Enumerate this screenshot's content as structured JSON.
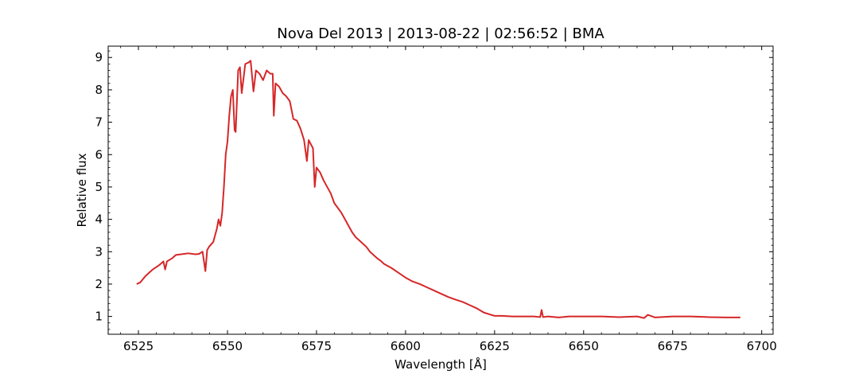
{
  "chart_data": {
    "type": "line",
    "title": "Nova Del 2013 | 2013-08-22 | 02:56:52 | BMA",
    "xlabel": "Wavelength [Å]",
    "ylabel": "Relative flux",
    "xlim": [
      6516.5,
      6703.2
    ],
    "ylim": [
      0.45,
      9.35
    ],
    "xticks": [
      6525,
      6550,
      6575,
      6600,
      6625,
      6650,
      6675,
      6700
    ],
    "yticks": [
      1,
      2,
      3,
      4,
      5,
      6,
      7,
      8,
      9
    ],
    "grid": false,
    "line_color": "#d62728",
    "series": [
      {
        "x": [
          6524.5,
          6525.5,
          6527.0,
          6529.0,
          6531.0,
          6532.0,
          6532.5,
          6533.0,
          6534.5,
          6535.5,
          6537.0,
          6539.0,
          6541.0,
          6542.0,
          6543.0,
          6543.8,
          6544.3,
          6544.8,
          6546.0,
          6547.0,
          6547.5,
          6548.0,
          6548.5,
          6549.0,
          6549.5,
          6550.0,
          6550.5,
          6551.0,
          6551.5,
          6552.0,
          6552.3,
          6553.0,
          6553.5,
          6554.0,
          6555.0,
          6556.0,
          6556.5,
          6557.3,
          6558.0,
          6559.0,
          6560.0,
          6561.0,
          6562.0,
          6562.7,
          6563.0,
          6563.5,
          6564.5,
          6565.5,
          6566.5,
          6567.5,
          6568.5,
          6569.5,
          6570.5,
          6571.5,
          6572.3,
          6572.8,
          6573.5,
          6574.0,
          6574.5,
          6575.0,
          6576.0,
          6577.0,
          6578.0,
          6579.0,
          6580.0,
          6581.0,
          6582.0,
          6583.0,
          6584.0,
          6585.0,
          6586.0,
          6587.0,
          6588.0,
          6589.0,
          6590.0,
          6591.0,
          6592.0,
          6593.0,
          6594.0,
          6596.0,
          6598.0,
          6600.0,
          6602.0,
          6604.0,
          6606.0,
          6608.0,
          6610.0,
          6612.0,
          6614.0,
          6616.0,
          6618.0,
          6620.0,
          6622.0,
          6624.0,
          6625.0,
          6627.0,
          6630.0,
          6633.0,
          6636.0,
          6637.8,
          6638.2,
          6638.6,
          6640.0,
          6643.0,
          6646.0,
          6650.0,
          6655.0,
          6660.0,
          6665.0,
          6667.0,
          6668.0,
          6670.0,
          6675.0,
          6680.0,
          6685.0,
          6690.0,
          6694.0
        ],
        "y": [
          2.0,
          2.05,
          2.25,
          2.45,
          2.6,
          2.7,
          2.45,
          2.7,
          2.8,
          2.9,
          2.92,
          2.95,
          2.92,
          2.93,
          3.0,
          2.4,
          3.05,
          3.15,
          3.3,
          3.7,
          4.0,
          3.8,
          4.2,
          5.0,
          6.0,
          6.4,
          7.2,
          7.8,
          8.0,
          6.75,
          6.7,
          8.6,
          8.7,
          7.9,
          8.8,
          8.85,
          8.9,
          7.95,
          8.6,
          8.5,
          8.3,
          8.6,
          8.5,
          8.5,
          7.2,
          8.2,
          8.1,
          7.9,
          7.8,
          7.65,
          7.1,
          7.05,
          6.8,
          6.45,
          5.8,
          6.45,
          6.3,
          6.2,
          5.0,
          5.6,
          5.45,
          5.2,
          5.0,
          4.8,
          4.5,
          4.35,
          4.2,
          4.0,
          3.8,
          3.6,
          3.45,
          3.35,
          3.25,
          3.15,
          3.0,
          2.9,
          2.8,
          2.72,
          2.62,
          2.5,
          2.35,
          2.2,
          2.08,
          2.0,
          1.9,
          1.8,
          1.7,
          1.6,
          1.52,
          1.45,
          1.35,
          1.25,
          1.12,
          1.05,
          1.02,
          1.02,
          1.0,
          1.0,
          1.0,
          0.98,
          1.2,
          0.98,
          1.0,
          0.97,
          1.0,
          1.0,
          1.0,
          0.98,
          1.0,
          0.95,
          1.05,
          0.97,
          1.0,
          1.0,
          0.98,
          0.97,
          0.97
        ]
      }
    ]
  }
}
